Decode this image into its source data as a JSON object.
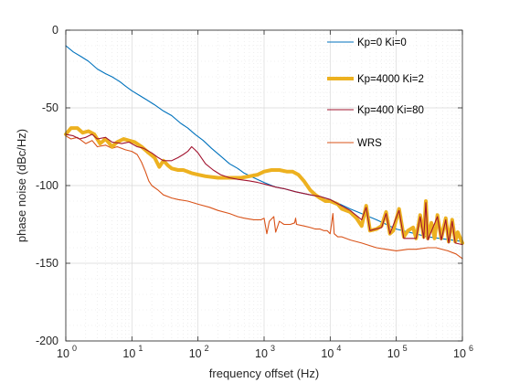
{
  "chart_data": {
    "type": "line",
    "xlabel": "frequency offset (Hz)",
    "ylabel": "phase noise (dBc/Hz)",
    "xscale": "log",
    "xlim": [
      1,
      1000000
    ],
    "ylim": [
      -200,
      0
    ],
    "x_ticks": [
      {
        "value": 1,
        "base": "10",
        "exp": "0"
      },
      {
        "value": 10,
        "base": "10",
        "exp": "1"
      },
      {
        "value": 100,
        "base": "10",
        "exp": "2"
      },
      {
        "value": 1000,
        "base": "10",
        "exp": "3"
      },
      {
        "value": 10000,
        "base": "10",
        "exp": "4"
      },
      {
        "value": 100000,
        "base": "10",
        "exp": "5"
      },
      {
        "value": 1000000,
        "base": "10",
        "exp": "6"
      }
    ],
    "y_ticks": [
      {
        "value": 0,
        "label": "0"
      },
      {
        "value": -50,
        "label": "-50"
      },
      {
        "value": -100,
        "label": "-100"
      },
      {
        "value": -150,
        "label": "-150"
      },
      {
        "value": -200,
        "label": "-200"
      }
    ],
    "grid": "minor dotted, log x",
    "legend_position": "top-right",
    "series": [
      {
        "name": "Kp=0 Ki=0",
        "color": "#0072bd",
        "line_width": "thin",
        "points": [
          [
            1,
            -10
          ],
          [
            1.3,
            -14
          ],
          [
            1.7,
            -17
          ],
          [
            2.2,
            -20
          ],
          [
            3,
            -25
          ],
          [
            4,
            -28
          ],
          [
            5,
            -30
          ],
          [
            6.5,
            -33
          ],
          [
            8,
            -36
          ],
          [
            10,
            -39
          ],
          [
            13,
            -42
          ],
          [
            17,
            -45
          ],
          [
            22,
            -48
          ],
          [
            30,
            -52
          ],
          [
            40,
            -55
          ],
          [
            55,
            -60
          ],
          [
            70,
            -63
          ],
          [
            90,
            -67
          ],
          [
            120,
            -71
          ],
          [
            160,
            -76
          ],
          [
            220,
            -81
          ],
          [
            300,
            -86
          ],
          [
            400,
            -89
          ],
          [
            500,
            -92
          ],
          [
            700,
            -95
          ],
          [
            1000,
            -98
          ],
          [
            1500,
            -101
          ],
          [
            2000,
            -102
          ],
          [
            3000,
            -104
          ],
          [
            5000,
            -106
          ],
          [
            7000,
            -107
          ],
          [
            10000,
            -109
          ],
          [
            20000,
            -115
          ],
          [
            50000,
            -122
          ],
          [
            100000,
            -128
          ],
          [
            300000,
            -133
          ],
          [
            1000000,
            -136
          ]
        ]
      },
      {
        "name": "Kp=4000 Ki=2",
        "color": "#edb120",
        "line_width": "thick",
        "points": [
          [
            1,
            -67
          ],
          [
            1.2,
            -63
          ],
          [
            1.5,
            -63
          ],
          [
            1.8,
            -66
          ],
          [
            2.2,
            -65
          ],
          [
            2.7,
            -67
          ],
          [
            3.3,
            -73
          ],
          [
            4,
            -70
          ],
          [
            5,
            -75
          ],
          [
            6,
            -72
          ],
          [
            7.5,
            -70
          ],
          [
            9,
            -71
          ],
          [
            11,
            -72
          ],
          [
            14,
            -75
          ],
          [
            18,
            -79
          ],
          [
            22,
            -82
          ],
          [
            26,
            -88
          ],
          [
            30,
            -84
          ],
          [
            35,
            -87
          ],
          [
            40,
            -89
          ],
          [
            50,
            -90
          ],
          [
            60,
            -90
          ],
          [
            80,
            -92
          ],
          [
            100,
            -93
          ],
          [
            130,
            -94
          ],
          [
            200,
            -95
          ],
          [
            300,
            -95
          ],
          [
            450,
            -95
          ],
          [
            600,
            -94
          ],
          [
            800,
            -93
          ],
          [
            1000,
            -91
          ],
          [
            1300,
            -90
          ],
          [
            1700,
            -90
          ],
          [
            2200,
            -91
          ],
          [
            2700,
            -91
          ],
          [
            3300,
            -93
          ],
          [
            4000,
            -97
          ],
          [
            5000,
            -103
          ],
          [
            6000,
            -106
          ],
          [
            7000,
            -108
          ],
          [
            8500,
            -110
          ],
          [
            10000,
            -110
          ],
          [
            13000,
            -112
          ],
          [
            15000,
            -115
          ],
          [
            20000,
            -117
          ],
          [
            25000,
            -121
          ],
          [
            30000,
            -126
          ],
          [
            35000,
            -113
          ],
          [
            40000,
            -129
          ],
          [
            50000,
            -128
          ],
          [
            60000,
            -126
          ],
          [
            70000,
            -117
          ],
          [
            80000,
            -131
          ],
          [
            90000,
            -129
          ],
          [
            110000,
            -115
          ],
          [
            130000,
            -133
          ],
          [
            150000,
            -129
          ],
          [
            180000,
            -127
          ],
          [
            200000,
            -134
          ],
          [
            230000,
            -119
          ],
          [
            260000,
            -133
          ],
          [
            280000,
            -110
          ],
          [
            300000,
            -134
          ],
          [
            340000,
            -124
          ],
          [
            380000,
            -134
          ],
          [
            420000,
            -119
          ],
          [
            480000,
            -134
          ],
          [
            560000,
            -121
          ],
          [
            620000,
            -136
          ],
          [
            700000,
            -122
          ],
          [
            780000,
            -136
          ],
          [
            850000,
            -130
          ],
          [
            1000000,
            -137
          ]
        ]
      },
      {
        "name": "Kp=400 Ki=80",
        "color": "#a2142f",
        "line_width": "thin",
        "points": [
          [
            1,
            -67
          ],
          [
            1.3,
            -68
          ],
          [
            1.6,
            -70
          ],
          [
            2,
            -69
          ],
          [
            2.5,
            -67
          ],
          [
            3,
            -70
          ],
          [
            4,
            -69
          ],
          [
            5,
            -72
          ],
          [
            7,
            -73
          ],
          [
            9,
            -72
          ],
          [
            12,
            -75
          ],
          [
            15,
            -76
          ],
          [
            20,
            -79
          ],
          [
            25,
            -82
          ],
          [
            30,
            -84
          ],
          [
            40,
            -84
          ],
          [
            50,
            -82
          ],
          [
            60,
            -80
          ],
          [
            70,
            -78
          ],
          [
            80,
            -75
          ],
          [
            90,
            -77
          ],
          [
            100,
            -79
          ],
          [
            130,
            -86
          ],
          [
            170,
            -90
          ],
          [
            220,
            -93
          ],
          [
            300,
            -95
          ],
          [
            400,
            -96
          ],
          [
            600,
            -97
          ],
          [
            800,
            -98
          ],
          [
            1000,
            -99
          ],
          [
            1500,
            -101
          ],
          [
            2000,
            -102
          ],
          [
            3000,
            -104
          ],
          [
            5000,
            -106
          ],
          [
            7000,
            -107
          ],
          [
            10000,
            -109
          ],
          [
            20000,
            -116
          ],
          [
            30000,
            -122
          ],
          [
            35000,
            -114
          ],
          [
            40000,
            -129
          ],
          [
            60000,
            -127
          ],
          [
            70000,
            -118
          ],
          [
            80000,
            -131
          ],
          [
            110000,
            -116
          ],
          [
            130000,
            -134
          ],
          [
            200000,
            -134
          ],
          [
            230000,
            -120
          ],
          [
            260000,
            -134
          ],
          [
            280000,
            -111
          ],
          [
            300000,
            -135
          ],
          [
            420000,
            -120
          ],
          [
            480000,
            -135
          ],
          [
            560000,
            -122
          ],
          [
            620000,
            -137
          ],
          [
            700000,
            -123
          ],
          [
            780000,
            -137
          ],
          [
            1000000,
            -138
          ]
        ]
      },
      {
        "name": "WRS",
        "color": "#d95319",
        "line_width": "thin",
        "points": [
          [
            1,
            -68
          ],
          [
            1.2,
            -70
          ],
          [
            1.5,
            -69
          ],
          [
            2,
            -73
          ],
          [
            2.5,
            -71
          ],
          [
            3,
            -75
          ],
          [
            4,
            -74
          ],
          [
            5,
            -76
          ],
          [
            6,
            -75
          ],
          [
            8,
            -77
          ],
          [
            10,
            -78
          ],
          [
            12,
            -80
          ],
          [
            14,
            -85
          ],
          [
            16,
            -91
          ],
          [
            18,
            -97
          ],
          [
            20,
            -100
          ],
          [
            25,
            -103
          ],
          [
            30,
            -106
          ],
          [
            40,
            -108
          ],
          [
            50,
            -109
          ],
          [
            70,
            -110
          ],
          [
            100,
            -112
          ],
          [
            150,
            -114
          ],
          [
            200,
            -116
          ],
          [
            300,
            -118
          ],
          [
            400,
            -120
          ],
          [
            500,
            -121
          ],
          [
            700,
            -122
          ],
          [
            900,
            -122
          ],
          [
            1000,
            -121
          ],
          [
            1100,
            -131
          ],
          [
            1200,
            -123
          ],
          [
            1400,
            -120
          ],
          [
            1500,
            -130
          ],
          [
            1700,
            -123
          ],
          [
            2000,
            -125
          ],
          [
            2500,
            -125
          ],
          [
            2900,
            -124
          ],
          [
            3000,
            -121
          ],
          [
            3100,
            -125
          ],
          [
            4000,
            -126
          ],
          [
            5000,
            -127
          ],
          [
            6000,
            -128
          ],
          [
            7000,
            -128
          ],
          [
            8000,
            -129
          ],
          [
            9000,
            -129
          ],
          [
            10000,
            -131
          ],
          [
            11000,
            -118
          ],
          [
            11500,
            -131
          ],
          [
            13000,
            -133
          ],
          [
            15000,
            -133
          ],
          [
            20000,
            -135
          ],
          [
            30000,
            -137
          ],
          [
            50000,
            -140
          ],
          [
            70000,
            -141
          ],
          [
            100000,
            -142
          ],
          [
            150000,
            -141
          ],
          [
            200000,
            -141
          ],
          [
            300000,
            -140
          ],
          [
            400000,
            -140
          ],
          [
            600000,
            -142
          ],
          [
            800000,
            -144
          ],
          [
            1000000,
            -147
          ]
        ]
      }
    ]
  }
}
